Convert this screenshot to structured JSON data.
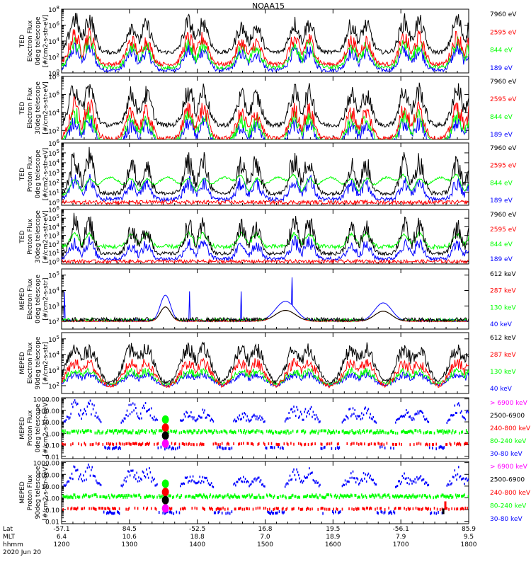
{
  "title": "NOAA15",
  "date_label": "2020 Jun 20",
  "axis_row_labels": [
    "Lat",
    "MLT",
    "hhmm"
  ],
  "x_ticks": [
    {
      "lat": "-57.1",
      "mlt": "6.4",
      "hhmm": "1200"
    },
    {
      "lat": "84.5",
      "mlt": "10.6",
      "hhmm": "1300"
    },
    {
      "lat": "-52.5",
      "mlt": "18.8",
      "hhmm": "1400"
    },
    {
      "lat": "16.8",
      "mlt": "7.0",
      "hhmm": "1500"
    },
    {
      "lat": "19.5",
      "mlt": "18.9",
      "hhmm": "1600"
    },
    {
      "lat": "-56.1",
      "mlt": "7.9",
      "hhmm": "1700"
    },
    {
      "lat": "85.9",
      "mlt": "9.5",
      "hhmm": "1800"
    }
  ],
  "colors": {
    "black": "#000000",
    "red": "#ff0000",
    "green": "#00ff00",
    "blue": "#0000ff",
    "magenta": "#ff00ff"
  },
  "chart_data": [
    {
      "type": "line",
      "ylabel_lines": [
        "TED",
        "Electron Flux",
        "0deg telescope",
        "[#/cm2-s-str-eV]"
      ],
      "y_scale": "log",
      "y_tick_labels": [
        "10^0",
        "10^2",
        "10^4",
        "10^6",
        "10^8"
      ],
      "y_tick_exponents": [
        0,
        2,
        4,
        6,
        8
      ],
      "ylim_exp": [
        0,
        8
      ],
      "legend": [
        {
          "label": "7960 eV",
          "color": "#000000"
        },
        {
          "label": "2595 eV",
          "color": "#ff0000"
        },
        {
          "label": "844 eV",
          "color": "#00ff00"
        },
        {
          "label": "189 eV",
          "color": "#0000ff"
        }
      ],
      "kind": "ted_e"
    },
    {
      "type": "line",
      "ylabel_lines": [
        "TED",
        "Electron Flux",
        "30deg telescope",
        "[#/cm2-s-str-eV]"
      ],
      "y_scale": "log",
      "y_tick_labels": [
        "10^2",
        "10^4",
        "10^6",
        "10^8"
      ],
      "y_tick_exponents": [
        2,
        4,
        6,
        8
      ],
      "ylim_exp": [
        1,
        8
      ],
      "legend": [
        {
          "label": "7960 eV",
          "color": "#000000"
        },
        {
          "label": "2595 eV",
          "color": "#ff0000"
        },
        {
          "label": "844 eV",
          "color": "#00ff00"
        },
        {
          "label": "189 eV",
          "color": "#0000ff"
        }
      ],
      "kind": "ted_e"
    },
    {
      "type": "line",
      "ylabel_lines": [
        "TED",
        "Proton Flux",
        "0deg telescope",
        "[#/cm2-s-str-eV]"
      ],
      "y_scale": "log",
      "y_tick_labels": [
        "10^0",
        "10^1",
        "10^2",
        "10^3",
        "10^4",
        "10^5",
        "10^6"
      ],
      "y_tick_exponents": [
        0,
        1,
        2,
        3,
        4,
        5,
        6
      ],
      "ylim_exp": [
        -0.3,
        6
      ],
      "legend": [
        {
          "label": "7960 eV",
          "color": "#000000"
        },
        {
          "label": "2595 eV",
          "color": "#ff0000"
        },
        {
          "label": "844 eV",
          "color": "#00ff00"
        },
        {
          "label": "189 eV",
          "color": "#0000ff"
        }
      ],
      "kind": "ted_p0"
    },
    {
      "type": "line",
      "ylabel_lines": [
        "TED",
        "Proton Flux",
        "30deg telescope",
        "[#/cm2-s-str-eV]"
      ],
      "y_scale": "log",
      "y_tick_labels": [
        "10^0",
        "10^1",
        "10^2",
        "10^3",
        "10^4",
        "10^5",
        "10^6"
      ],
      "y_tick_exponents": [
        0,
        1,
        2,
        3,
        4,
        5,
        6
      ],
      "ylim_exp": [
        -0.3,
        6
      ],
      "legend": [
        {
          "label": "7960 eV",
          "color": "#000000"
        },
        {
          "label": "2595 eV",
          "color": "#ff0000"
        },
        {
          "label": "844 eV",
          "color": "#00ff00"
        },
        {
          "label": "189 eV",
          "color": "#0000ff"
        }
      ],
      "kind": "ted_p30"
    },
    {
      "type": "line",
      "ylabel_lines": [
        "MEPED",
        "Electron Flux",
        "0deg telescope",
        "[#/cm2-s-str]"
      ],
      "y_scale": "log",
      "y_tick_labels": [
        "10^2",
        "10^3",
        "10^4",
        "10^5"
      ],
      "y_tick_exponents": [
        2,
        3,
        4,
        5
      ],
      "ylim_exp": [
        1.5,
        5.4
      ],
      "legend": [
        {
          "label": "612 keV",
          "color": "#000000"
        },
        {
          "label": "287 keV",
          "color": "#ff0000"
        },
        {
          "label": "130 keV",
          "color": "#00ff00"
        },
        {
          "label": "40 keV",
          "color": "#0000ff"
        }
      ],
      "kind": "mep_e0"
    },
    {
      "type": "line",
      "ylabel_lines": [
        "MEPED",
        "Electron Flux",
        "90deg telescope",
        "[#/cm2-s-str]"
      ],
      "y_scale": "log",
      "y_tick_labels": [
        "10^2",
        "10^3",
        "10^4",
        "10^5"
      ],
      "y_tick_exponents": [
        2,
        3,
        4,
        5
      ],
      "ylim_exp": [
        1.5,
        5.4
      ],
      "legend": [
        {
          "label": "612 keV",
          "color": "#000000"
        },
        {
          "label": "287 keV",
          "color": "#ff0000"
        },
        {
          "label": "130 keV",
          "color": "#00ff00"
        },
        {
          "label": "40 keV",
          "color": "#0000ff"
        }
      ],
      "kind": "mep_e90"
    },
    {
      "type": "scatter",
      "ylabel_lines": [
        "MEPED",
        "Proton Flux",
        "0deg telescope",
        "[#/cm2-s-str-keV]"
      ],
      "y_scale": "log",
      "y_tick_labels": [
        "0.01",
        "0.10",
        "1.00",
        "10.00",
        "100.00",
        "1000.00"
      ],
      "y_tick_exponents": [
        -2,
        -1,
        0,
        1,
        2,
        3
      ],
      "ylim_exp": [
        -2.2,
        3.1
      ],
      "legend": [
        {
          "label": "> 6900 keV",
          "color": "#ff00ff"
        },
        {
          "label": "2500-6900",
          "color": "#000000"
        },
        {
          "label": "240-800 keV",
          "color": "#ff0000"
        },
        {
          "label": "80-240 keV",
          "color": "#00ff00"
        },
        {
          "label": "30-80 keV",
          "color": "#0000ff"
        }
      ],
      "kind": "mep_p0"
    },
    {
      "type": "scatter",
      "ylabel_lines": [
        "MEPED",
        "Proton Flux",
        "90deg telescope",
        "[#/cm2-s-str-keV]"
      ],
      "y_scale": "log",
      "y_tick_labels": [
        "0.01",
        "0.10",
        "1.00",
        "10.00",
        "100.00",
        "1000.00"
      ],
      "y_tick_exponents": [
        -2,
        -1,
        0,
        1,
        2,
        3
      ],
      "ylim_exp": [
        -2.2,
        3.1
      ],
      "legend": [
        {
          "label": "> 6900 keV",
          "color": "#ff00ff"
        },
        {
          "label": "2500-6900",
          "color": "#000000"
        },
        {
          "label": "240-800 keV",
          "color": "#ff0000"
        },
        {
          "label": "80-240 keV",
          "color": "#00ff00"
        },
        {
          "label": "30-80 keV",
          "color": "#0000ff"
        }
      ],
      "kind": "mep_p90"
    }
  ]
}
